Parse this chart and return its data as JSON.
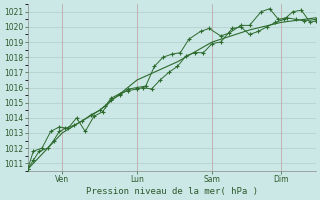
{
  "xlabel": "Pression niveau de la mer( hPa )",
  "background_color": "#cce8e6",
  "grid_color": "#b0cccc",
  "line_color": "#2d6a2d",
  "ylim": [
    1010.5,
    1021.5
  ],
  "yticks": [
    1011,
    1012,
    1013,
    1014,
    1015,
    1016,
    1017,
    1018,
    1019,
    1020,
    1021
  ],
  "xtick_labels": [
    "Ven",
    "Lun",
    "Sam",
    "Dim"
  ],
  "xtick_positions": [
    0.12,
    0.38,
    0.64,
    0.88
  ],
  "vline_positions": [
    0.12,
    0.38,
    0.64,
    0.88
  ],
  "line1_x": [
    0.0,
    0.02,
    0.04,
    0.07,
    0.09,
    0.11,
    0.13,
    0.16,
    0.19,
    0.22,
    0.25,
    0.27,
    0.29,
    0.32,
    0.35,
    0.38,
    0.4,
    0.43,
    0.46,
    0.49,
    0.52,
    0.55,
    0.58,
    0.61,
    0.64,
    0.67,
    0.71,
    0.74,
    0.77,
    0.8,
    0.83,
    0.86,
    0.89,
    0.92,
    0.95,
    0.98,
    1.0
  ],
  "line1_y": [
    1010.6,
    1011.2,
    1011.8,
    1012.0,
    1012.5,
    1013.1,
    1013.3,
    1013.5,
    1013.8,
    1014.2,
    1014.5,
    1014.8,
    1015.3,
    1015.6,
    1015.8,
    1015.9,
    1016.0,
    1015.9,
    1016.5,
    1017.0,
    1017.4,
    1018.1,
    1018.3,
    1018.3,
    1018.9,
    1019.0,
    1019.9,
    1020.0,
    1019.5,
    1019.7,
    1020.0,
    1020.3,
    1020.5,
    1021.0,
    1021.1,
    1020.3,
    1020.4
  ],
  "line2_x": [
    0.0,
    0.02,
    0.05,
    0.08,
    0.11,
    0.14,
    0.17,
    0.2,
    0.23,
    0.26,
    0.29,
    0.32,
    0.35,
    0.38,
    0.41,
    0.44,
    0.47,
    0.5,
    0.53,
    0.56,
    0.6,
    0.63,
    0.67,
    0.7,
    0.74,
    0.77,
    0.81,
    0.84,
    0.87,
    0.9,
    0.93,
    0.96,
    1.0
  ],
  "line2_y": [
    1010.6,
    1011.8,
    1012.0,
    1013.1,
    1013.4,
    1013.3,
    1014.0,
    1013.1,
    1014.1,
    1014.4,
    1015.2,
    1015.5,
    1015.9,
    1016.0,
    1016.1,
    1017.4,
    1018.0,
    1018.2,
    1018.3,
    1019.2,
    1019.7,
    1019.9,
    1019.4,
    1019.6,
    1020.1,
    1020.1,
    1021.0,
    1021.2,
    1020.5,
    1020.6,
    1020.5,
    1020.4,
    1020.5
  ],
  "line3_x": [
    0.0,
    0.12,
    0.25,
    0.38,
    0.52,
    0.64,
    0.77,
    0.88,
    1.0
  ],
  "line3_y": [
    1010.6,
    1013.0,
    1014.5,
    1016.5,
    1017.7,
    1019.0,
    1019.8,
    1020.3,
    1020.6
  ]
}
